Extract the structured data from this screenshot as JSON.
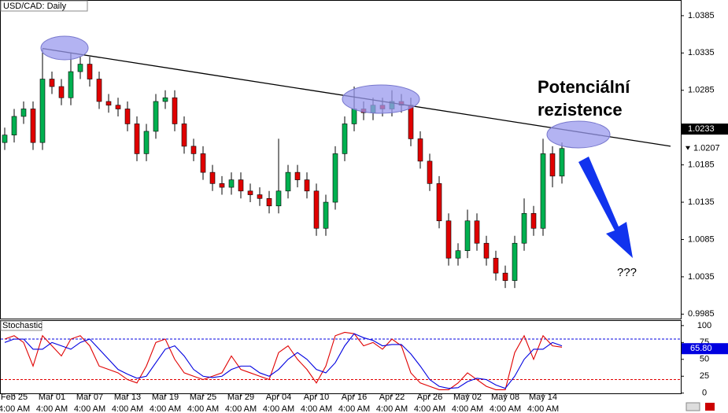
{
  "chart_data": {
    "type": "candlestick",
    "title": "USD/CAD: Daily",
    "categories": [
      null,
      "Feb 25",
      null,
      null,
      null,
      "Mar 01",
      null,
      null,
      null,
      "Mar 07",
      null,
      null,
      null,
      "Mar 13",
      null,
      null,
      null,
      "Mar 19",
      null,
      null,
      null,
      "Mar 25",
      null,
      null,
      null,
      "Mar 29",
      null,
      null,
      null,
      "Apr 04",
      null,
      null,
      null,
      "Apr 10",
      null,
      null,
      null,
      "Apr 16",
      null,
      null,
      null,
      "Apr 22",
      null,
      null,
      null,
      "Apr 26",
      null,
      null,
      null,
      "May 02",
      null,
      null,
      null,
      "May 08",
      null,
      null,
      null,
      "May 14",
      null,
      null
    ],
    "time_labels": [
      "4:00 AM",
      "4:00 AM",
      "4:00 AM",
      "4:00 AM",
      "4:00 AM",
      "4:00 AM",
      "4:00 AM",
      "4:00 AM",
      "4:00 AM",
      "4:00 AM",
      "4:00 AM",
      "4:00 AM",
      "4:00 AM",
      "4:00 AM",
      "4:00 AM"
    ],
    "open": [
      1.0215,
      1.0225,
      1.025,
      1.026,
      1.0215,
      1.03,
      1.029,
      1.0275,
      1.031,
      1.032,
      1.03,
      1.027,
      1.0265,
      1.026,
      1.024,
      1.02,
      1.023,
      1.027,
      1.0275,
      1.024,
      1.021,
      1.02,
      1.0175,
      1.016,
      1.0155,
      1.0165,
      1.015,
      1.0145,
      1.014,
      1.013,
      1.015,
      1.0175,
      1.0165,
      1.015,
      1.01,
      1.0135,
      1.02,
      1.024,
      1.026,
      1.0255,
      1.0265,
      1.026,
      1.027,
      1.0265,
      1.022,
      1.019,
      1.016,
      1.011,
      1.006,
      1.007,
      1.011,
      1.008,
      1.006,
      1.004,
      1.003,
      1.008,
      1.012,
      1.01,
      1.02,
      1.017
    ],
    "high": [
      1.0235,
      1.026,
      1.027,
      1.027,
      1.034,
      1.031,
      1.03,
      1.0335,
      1.033,
      1.033,
      1.031,
      1.028,
      1.0275,
      1.027,
      1.025,
      1.024,
      1.028,
      1.0285,
      1.0285,
      1.025,
      1.022,
      1.021,
      1.0185,
      1.017,
      1.0175,
      1.0175,
      1.016,
      1.0155,
      1.015,
      1.022,
      1.0185,
      1.0185,
      1.0175,
      1.016,
      1.0145,
      1.021,
      1.025,
      1.029,
      1.027,
      1.0275,
      1.0275,
      1.0285,
      1.028,
      1.0275,
      1.023,
      1.02,
      1.017,
      1.012,
      1.008,
      1.0125,
      1.012,
      1.009,
      1.007,
      1.005,
      1.009,
      1.014,
      1.013,
      1.022,
      1.021,
      1.0215
    ],
    "low": [
      1.0205,
      1.0215,
      1.024,
      1.0205,
      1.0205,
      1.028,
      1.0265,
      1.0265,
      1.03,
      1.029,
      1.026,
      1.0255,
      1.025,
      1.023,
      1.019,
      1.019,
      1.022,
      1.026,
      1.023,
      1.02,
      1.019,
      1.0165,
      1.015,
      1.0145,
      1.0145,
      1.014,
      1.0135,
      1.013,
      1.012,
      1.012,
      1.014,
      1.0155,
      1.014,
      1.009,
      1.009,
      1.0125,
      1.019,
      1.023,
      1.0245,
      1.0245,
      1.025,
      1.025,
      1.0255,
      1.021,
      1.018,
      1.015,
      1.01,
      1.005,
      1.005,
      1.006,
      1.007,
      1.005,
      1.003,
      1.002,
      1.002,
      1.007,
      1.009,
      1.009,
      1.0155,
      1.016
    ],
    "close": [
      1.0225,
      1.025,
      1.026,
      1.0215,
      1.03,
      1.029,
      1.0275,
      1.031,
      1.032,
      1.03,
      1.027,
      1.0265,
      1.026,
      1.024,
      1.02,
      1.023,
      1.027,
      1.0275,
      1.024,
      1.021,
      1.02,
      1.0175,
      1.016,
      1.0155,
      1.0165,
      1.015,
      1.0145,
      1.014,
      1.013,
      1.015,
      1.0175,
      1.0165,
      1.015,
      1.01,
      1.0135,
      1.02,
      1.024,
      1.026,
      1.0255,
      1.0265,
      1.026,
      1.027,
      1.0265,
      1.022,
      1.019,
      1.016,
      1.011,
      1.006,
      1.007,
      1.011,
      1.008,
      1.006,
      1.004,
      1.003,
      1.008,
      1.012,
      1.01,
      1.02,
      1.017,
      1.0207
    ],
    "up_color": "#00b050",
    "down_color": "#e00000",
    "ylim": [
      0.9979,
      1.0406
    ],
    "yticks": [
      1.0385,
      1.0335,
      1.0285,
      1.0185,
      1.0135,
      1.0085,
      1.0035,
      0.9985
    ],
    "price_markers": [
      1.0233,
      1.0207
    ],
    "trendline": {
      "x": [
        4,
        70.5
      ],
      "y": [
        1.0341,
        1.021
      ]
    },
    "annotation_lines": [
      "Potenciální",
      "rezistence"
    ],
    "question": "???",
    "indicator": {
      "title": "Stochastic",
      "ylim": [
        -12,
        108
      ],
      "yticks": [
        0,
        25,
        50,
        75,
        100
      ],
      "levels": [
        80,
        20
      ],
      "series": [
        {
          "color": "#e00000",
          "values": [
            80,
            85,
            75,
            40,
            85,
            70,
            55,
            80,
            85,
            70,
            40,
            35,
            30,
            20,
            15,
            40,
            75,
            80,
            50,
            30,
            25,
            20,
            25,
            30,
            55,
            35,
            30,
            25,
            20,
            60,
            70,
            50,
            35,
            15,
            40,
            85,
            90,
            88,
            70,
            75,
            65,
            80,
            70,
            30,
            15,
            10,
            5,
            5,
            15,
            30,
            20,
            10,
            5,
            5,
            60,
            85,
            50,
            85,
            70,
            68
          ]
        },
        {
          "color": "#0000e0",
          "values": [
            75,
            80,
            80,
            65,
            65,
            75,
            70,
            65,
            75,
            80,
            65,
            50,
            35,
            28,
            22,
            25,
            45,
            65,
            70,
            55,
            35,
            25,
            23,
            25,
            35,
            40,
            40,
            30,
            25,
            35,
            50,
            60,
            50,
            35,
            30,
            45,
            70,
            88,
            82,
            78,
            70,
            72,
            72,
            58,
            40,
            20,
            10,
            7,
            8,
            17,
            22,
            20,
            12,
            7,
            25,
            50,
            65,
            65,
            75,
            70
          ]
        }
      ],
      "current": {
        "value": 65.8,
        "label": "65.80"
      }
    }
  }
}
